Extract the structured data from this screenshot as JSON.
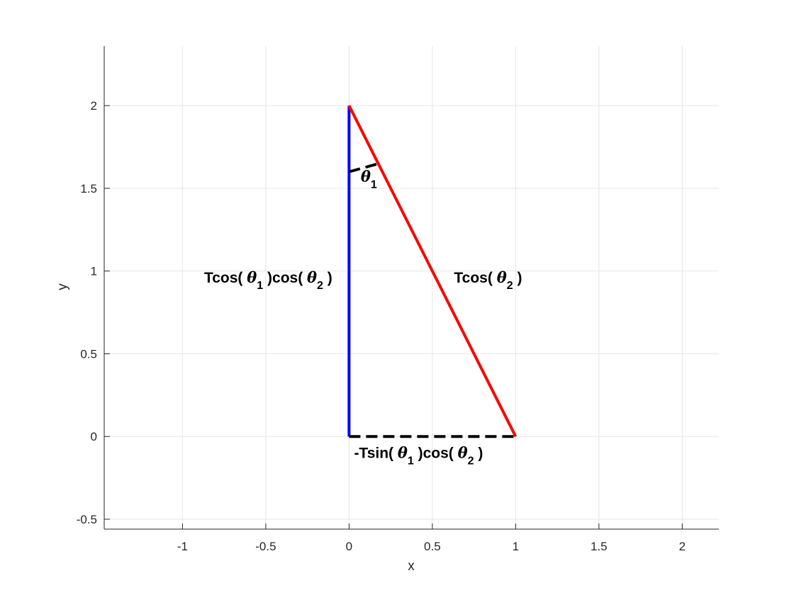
{
  "chart_data": {
    "type": "line",
    "xlabel": "x",
    "ylabel": "y",
    "xlim": [
      -1.47,
      2.22
    ],
    "ylim": [
      -0.56,
      2.36
    ],
    "grid": true,
    "xticks": [
      -1,
      -0.5,
      0,
      0.5,
      1,
      1.5,
      2
    ],
    "yticks": [
      -0.5,
      0,
      0.5,
      1,
      1.5,
      2
    ],
    "xtick_labels": [
      "-1",
      "-0.5",
      "0",
      "0.5",
      "1",
      "1.5",
      "2"
    ],
    "ytick_labels": [
      "-0.5",
      "0",
      "0.5",
      "1",
      "1.5",
      "2"
    ],
    "colors": {
      "vertical": "#0000ff",
      "hypotenuse": "#ff0000",
      "base": "#000000",
      "grid": "#e6e6e6",
      "axis": "#262626"
    },
    "segments": [
      {
        "x": [
          0,
          0
        ],
        "y": [
          0,
          2
        ],
        "color": "#0000ff",
        "style": "solid"
      },
      {
        "x": [
          0,
          1
        ],
        "y": [
          2,
          0
        ],
        "color": "#ff0000",
        "style": "solid"
      },
      {
        "x": [
          0,
          1
        ],
        "y": [
          0,
          0
        ],
        "color": "#000000",
        "style": "dashed"
      },
      {
        "x": [
          0,
          0.18
        ],
        "y": [
          1.6,
          1.65
        ],
        "color": "#000000",
        "style": "dashed"
      }
    ],
    "annotations": [
      {
        "x": 0.07,
        "y": 1.54,
        "parts": [
          {
            "t": "θ",
            "greek": true
          },
          {
            "t": "1",
            "sub": true
          }
        ]
      },
      {
        "x": -0.87,
        "y": 0.93,
        "parts": [
          {
            "t": "Tcos( "
          },
          {
            "t": "θ",
            "greek": true
          },
          {
            "t": "1",
            "sub": true
          },
          {
            "t": " )cos( "
          },
          {
            "t": "θ",
            "greek": true
          },
          {
            "t": "2",
            "sub": true
          },
          {
            "t": " )"
          }
        ]
      },
      {
        "x": 0.63,
        "y": 0.93,
        "parts": [
          {
            "t": "Tcos( "
          },
          {
            "t": "θ",
            "greek": true
          },
          {
            "t": "2",
            "sub": true
          },
          {
            "t": " )"
          }
        ]
      },
      {
        "x": 0.03,
        "y": -0.13,
        "parts": [
          {
            "t": "-Tsin( "
          },
          {
            "t": "θ",
            "greek": true
          },
          {
            "t": "1",
            "sub": true
          },
          {
            "t": " )cos( "
          },
          {
            "t": "θ",
            "greek": true
          },
          {
            "t": "2",
            "sub": true
          },
          {
            "t": " )"
          }
        ]
      }
    ]
  }
}
